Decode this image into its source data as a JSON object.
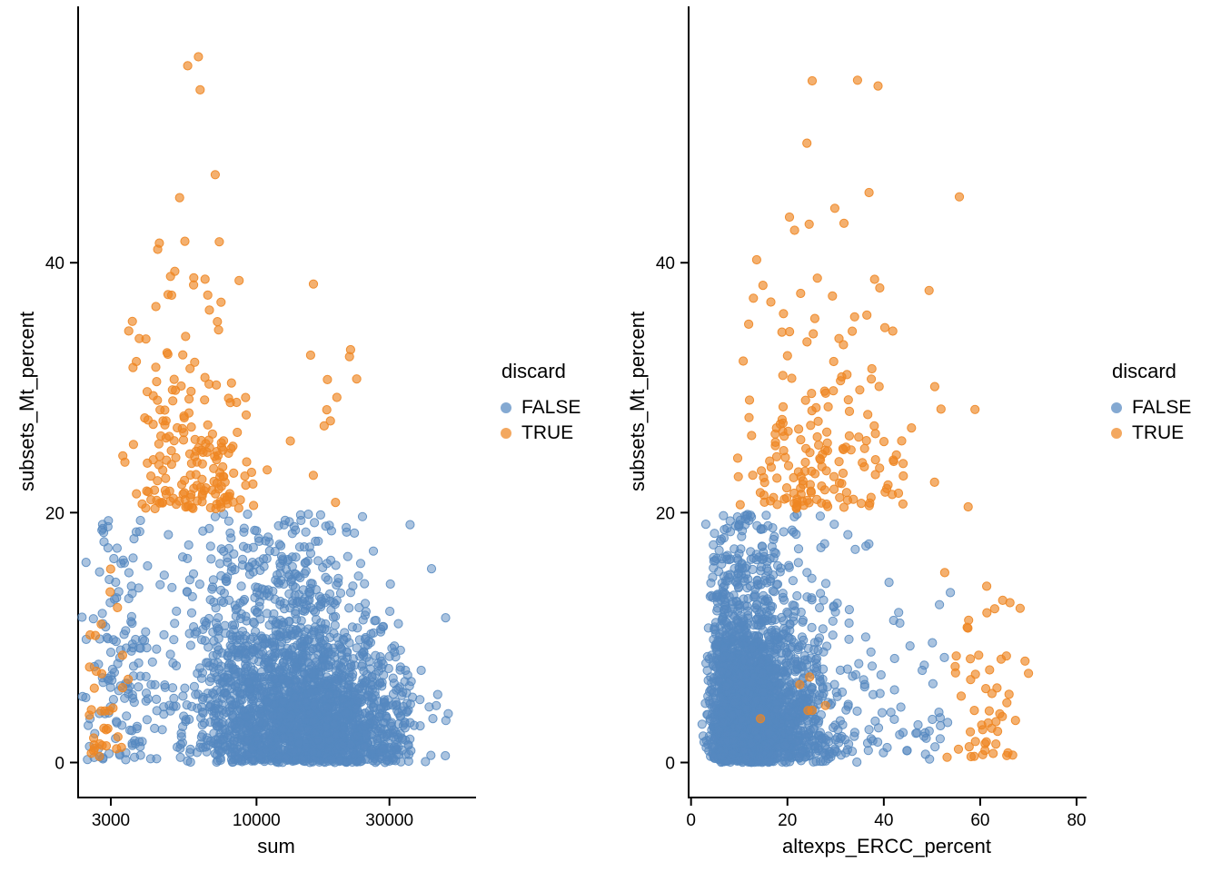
{
  "figure": {
    "background": "#ffffff",
    "text_color": "#000000",
    "description": "Two scatter plots of single-cell QC metrics colored by discard status"
  },
  "chart_data": [
    {
      "type": "scatter",
      "panel": "left",
      "title": "",
      "xlabel": "sum",
      "ylabel": "subsets_Mt_percent",
      "legend_title": "discard",
      "legend_position": "right",
      "grid": false,
      "x_scale": "log10",
      "xlim": [
        2290,
        60000
      ],
      "ylim": [
        -2.8,
        60.3
      ],
      "x_ticks": [
        3000,
        10000,
        30000
      ],
      "x_tick_labels": [
        "3000",
        "10000",
        "30000"
      ],
      "y_ticks": [
        0,
        20,
        40
      ],
      "y_tick_labels": [
        "0",
        "20",
        "40"
      ],
      "series": [
        {
          "name": "FALSE",
          "color": "#5588C0",
          "fill_opacity": 0.5,
          "stroke_opacity": 0.85,
          "n_points": 2590,
          "clusters": [
            {
              "n": 1200,
              "x": {
                "dist": "lognormal10",
                "mu": 4.05,
                "sigma": 0.16,
                "min": 2600,
                "max": 55000
              },
              "y": {
                "dist": "halfnormal",
                "sigma": 7.2,
                "min": 0,
                "max": 19.8
              }
            },
            {
              "n": 1000,
              "x": {
                "dist": "lognormal10",
                "mu": 4.28,
                "sigma": 0.14,
                "min": 3500,
                "max": 55000
              },
              "y": {
                "dist": "halfnormal",
                "sigma": 4.6,
                "min": 0,
                "max": 19.5
              }
            },
            {
              "n": 130,
              "x": {
                "dist": "lognormal10",
                "mu": 3.5,
                "sigma": 0.07,
                "min": 2340,
                "max": 4500
              },
              "y": {
                "dist": "uniform",
                "min": 0.2,
                "max": 19.5
              }
            },
            {
              "n": 260,
              "x": {
                "dist": "lognormal10",
                "mu": 4.1,
                "sigma": 0.18,
                "min": 2700,
                "max": 50000
              },
              "y": {
                "dist": "uniform",
                "min": 0.2,
                "max": 19.9
              }
            }
          ]
        },
        {
          "name": "TRUE",
          "color": "#EE8622",
          "fill_opacity": 0.65,
          "stroke_opacity": 0.9,
          "n_points": 248,
          "clusters": [
            {
              "n": 200,
              "x": {
                "dist": "lognormal10",
                "mu": 3.78,
                "sigma": 0.11,
                "min": 2800,
                "max": 22000
              },
              "y": {
                "dist": "expshift",
                "base": 20.3,
                "mean": 6.2,
                "min": 20.3,
                "max": 57.5
              }
            },
            {
              "n": 34,
              "x": {
                "dist": "lognormal10",
                "mu": 3.46,
                "sigma": 0.05,
                "min": 2340,
                "max": 3800
              },
              "y": {
                "dist": "halfnormal",
                "sigma": 6.5,
                "min": 0.3,
                "max": 16
              }
            },
            {
              "n": 12,
              "x": {
                "dist": "lognormal10",
                "mu": 4.25,
                "sigma": 0.12,
                "min": 12000,
                "max": 33000
              },
              "y": {
                "dist": "uniform",
                "min": 20.5,
                "max": 39
              }
            },
            {
              "n": 2,
              "x": {
                "dist": "uniform",
                "min": 5500,
                "max": 6300
              },
              "y": {
                "dist": "uniform",
                "min": 53.5,
                "max": 57.5
              }
            }
          ]
        }
      ]
    },
    {
      "type": "scatter",
      "panel": "right",
      "title": "",
      "xlabel": "altexps_ERCC_percent",
      "ylabel": "subsets_Mt_percent",
      "legend_title": "discard",
      "legend_position": "right",
      "grid": false,
      "x_scale": "linear",
      "xlim": [
        -0.5,
        81.5
      ],
      "ylim": [
        -2.8,
        60.3
      ],
      "x_ticks": [
        0,
        20,
        40,
        60,
        80
      ],
      "x_tick_labels": [
        "0",
        "20",
        "40",
        "60",
        "80"
      ],
      "y_ticks": [
        0,
        20,
        40
      ],
      "y_tick_labels": [
        "0",
        "20",
        "40"
      ],
      "series": [
        {
          "name": "FALSE",
          "color": "#5588C0",
          "fill_opacity": 0.5,
          "stroke_opacity": 0.85,
          "n_points": 2540,
          "clusters": [
            {
              "n": 1250,
              "x": {
                "dist": "lognormal10",
                "mu": 1.08,
                "sigma": 0.21,
                "min": 1.5,
                "max": 52
              },
              "y": {
                "dist": "halfnormal",
                "sigma": 7.2,
                "min": 0,
                "max": 19.8
              }
            },
            {
              "n": 1000,
              "x": {
                "dist": "lognormal10",
                "mu": 1.12,
                "sigma": 0.2,
                "min": 1.5,
                "max": 50
              },
              "y": {
                "dist": "halfnormal",
                "sigma": 4.6,
                "min": 0,
                "max": 19.5
              }
            },
            {
              "n": 260,
              "x": {
                "dist": "lognormal10",
                "mu": 1.1,
                "sigma": 0.22,
                "min": 2,
                "max": 52
              },
              "y": {
                "dist": "uniform",
                "min": 0.2,
                "max": 19.9
              }
            },
            {
              "n": 30,
              "x": {
                "dist": "uniform",
                "min": 42,
                "max": 55
              },
              "y": {
                "dist": "halfnormal",
                "sigma": 6,
                "min": 0.2,
                "max": 18
              }
            }
          ]
        },
        {
          "name": "TRUE",
          "color": "#EE8622",
          "fill_opacity": 0.65,
          "stroke_opacity": 0.9,
          "n_points": 253,
          "clusters": [
            {
              "n": 190,
              "x": {
                "dist": "lognormal10",
                "mu": 1.42,
                "sigma": 0.16,
                "min": 5,
                "max": 62
              },
              "y": {
                "dist": "expshift",
                "base": 20.3,
                "mean": 6.2,
                "min": 20.3,
                "max": 57.5
              }
            },
            {
              "n": 55,
              "x": {
                "dist": "normal",
                "mu": 59,
                "sigma": 5.5,
                "min": 52,
                "max": 78
              },
              "y": {
                "dist": "halfnormal",
                "sigma": 6.5,
                "min": 0.3,
                "max": 18
              }
            },
            {
              "n": 6,
              "x": {
                "dist": "uniform",
                "min": 14,
                "max": 30
              },
              "y": {
                "dist": "uniform",
                "min": 2,
                "max": 7
              }
            },
            {
              "n": 2,
              "x": {
                "dist": "uniform",
                "min": 33,
                "max": 43
              },
              "y": {
                "dist": "uniform",
                "min": 53.5,
                "max": 57.5
              }
            }
          ]
        }
      ]
    }
  ]
}
